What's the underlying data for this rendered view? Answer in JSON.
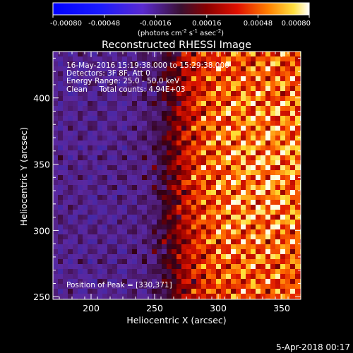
{
  "chart_data": {
    "type": "heatmap",
    "title": "Reconstructed RHESSI Image",
    "xlabel": "Heliocentric X (arcsec)",
    "ylabel": "Heliocentric Y (arcsec)",
    "xlim": [
      170,
      365
    ],
    "ylim": [
      248,
      435
    ],
    "x_ticks": [
      200,
      250,
      300,
      350
    ],
    "y_ticks": [
      250,
      300,
      350,
      400
    ],
    "colorbar": {
      "range": [
        -0.0008,
        0.0008
      ],
      "ticks": [
        "-0.00080",
        "-0.00048",
        "-0.00016",
        "0.00016",
        "0.00048",
        "0.00080"
      ],
      "units_prefix": "(photons cm",
      "units_exp1": "-2",
      "units_mid": " s",
      "units_exp2": "-1",
      "units_mid2": " asec",
      "units_exp3": "-2",
      "units_suffix": ")"
    },
    "annotations": [
      "16-May-2016 15:19:38.000 to 15:29:38.000",
      "Detectors: 3F 8F, Att 0",
      "Energy Range: 25.0 - 50.0 keV",
      "Clean     Total counts: 4.94E+03"
    ],
    "peak_label": "Position of Peak = [330,371]",
    "peak": [
      330,
      371
    ],
    "grid": false,
    "colormap": "rhessi-diverging (blue-purple-red-yellow-white)"
  },
  "footer": {
    "timestamp": "5-Apr-2018 00:17"
  }
}
